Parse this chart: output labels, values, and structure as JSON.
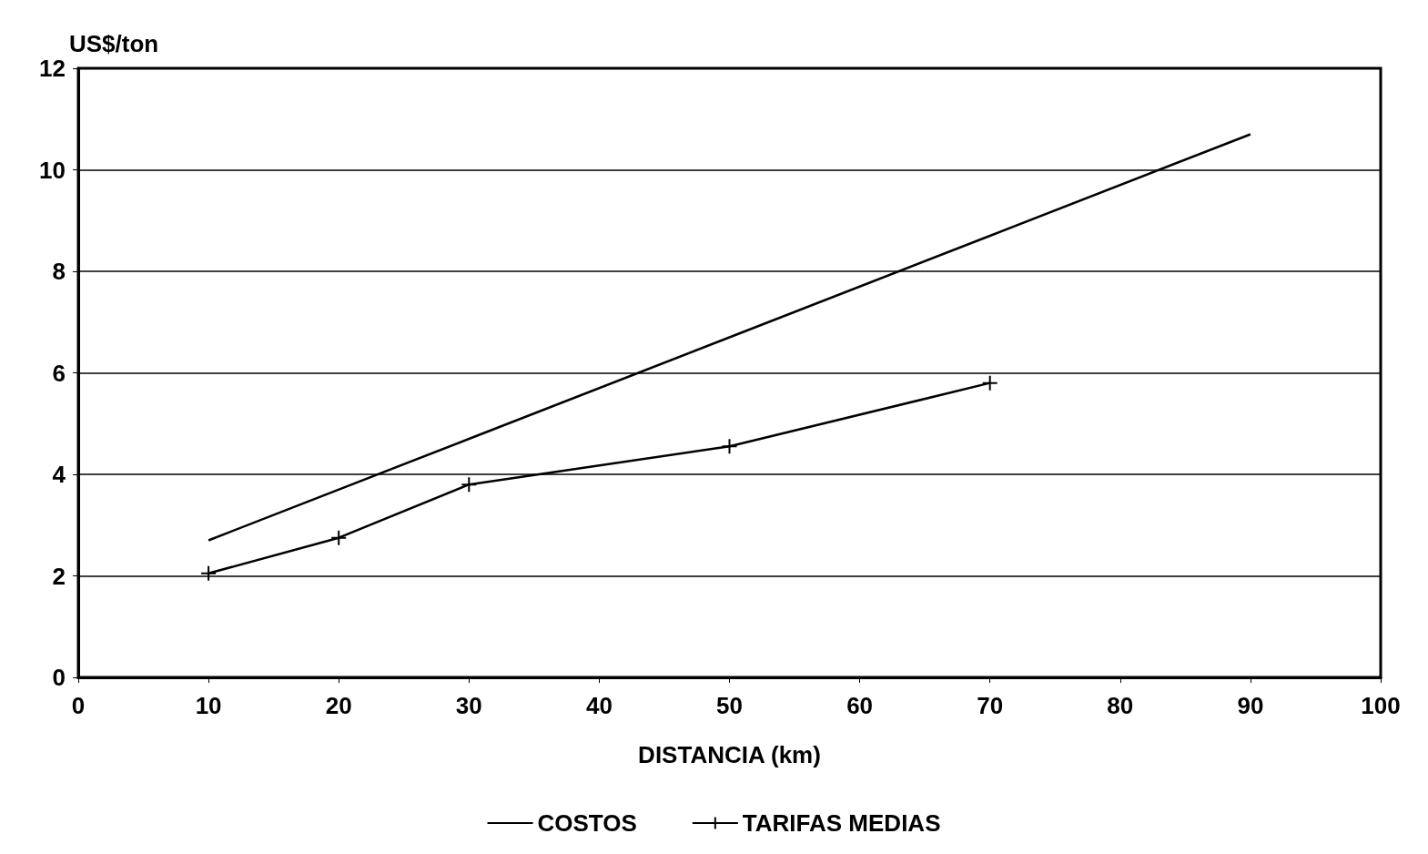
{
  "chart_data": {
    "type": "line",
    "ylabel": "US$/ton",
    "xlabel": "DISTANCIA (km)",
    "xlim": [
      0,
      100
    ],
    "xticks": [
      0,
      10,
      20,
      30,
      40,
      50,
      60,
      70,
      80,
      90,
      100
    ],
    "ylim": [
      0,
      12
    ],
    "yticks": [
      0,
      2,
      4,
      6,
      8,
      10,
      12
    ],
    "grid": "y",
    "legend": "bottom",
    "line_style": "solid",
    "series": [
      {
        "name": "COSTOS",
        "color": "#000000",
        "marker": "none",
        "x": [
          10,
          30,
          50,
          70,
          90
        ],
        "values": [
          2.7,
          4.7,
          6.7,
          8.7,
          10.7
        ]
      },
      {
        "name": "TARIFAS MEDIAS",
        "color": "#000000",
        "marker": "cross",
        "x": [
          10,
          20,
          30,
          50,
          70
        ],
        "values": [
          2.05,
          2.75,
          3.8,
          4.55,
          5.8
        ]
      }
    ]
  }
}
